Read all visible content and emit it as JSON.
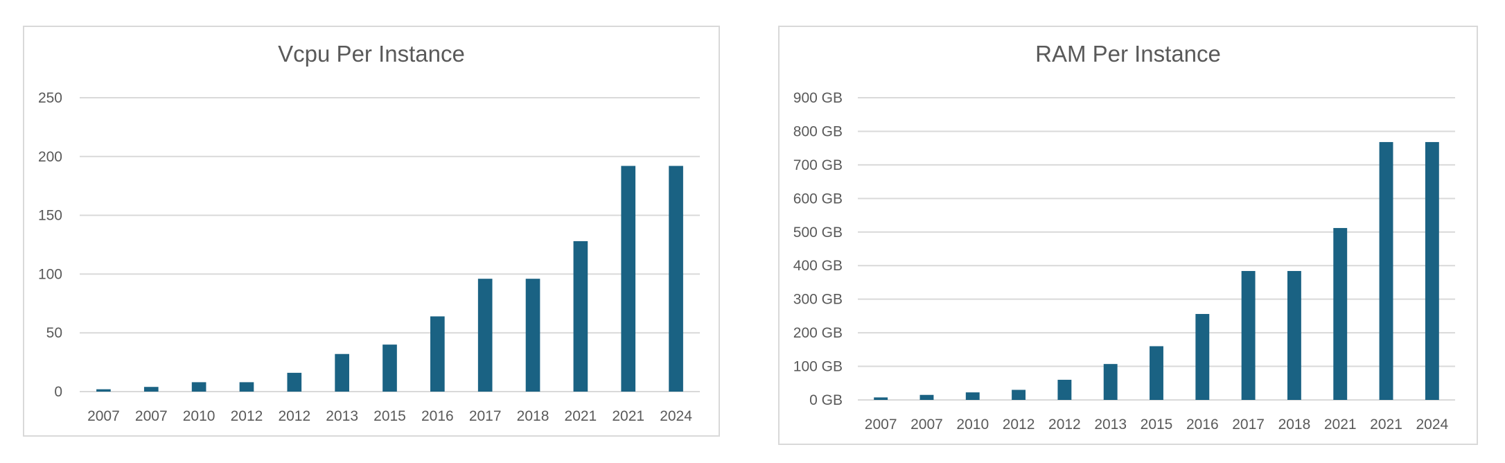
{
  "chart_data": [
    {
      "type": "bar",
      "title": "Vcpu Per Instance",
      "xlabel": "",
      "ylabel": "",
      "categories": [
        "2007",
        "2007",
        "2010",
        "2012",
        "2012",
        "2013",
        "2015",
        "2016",
        "2017",
        "2018",
        "2021",
        "2021",
        "2024"
      ],
      "values": [
        2,
        4,
        8,
        8,
        16,
        32,
        40,
        64,
        96,
        96,
        128,
        192,
        192
      ],
      "ylim": [
        0,
        250
      ],
      "yticks": [
        0,
        50,
        100,
        150,
        200,
        250
      ],
      "ytick_labels": [
        "0",
        "50",
        "100",
        "150",
        "200",
        "250"
      ],
      "bar_color": "#1a6283",
      "grid": true,
      "legend": "none"
    },
    {
      "type": "bar",
      "title": "RAM Per Instance",
      "xlabel": "",
      "ylabel": "",
      "categories": [
        "2007",
        "2007",
        "2010",
        "2012",
        "2012",
        "2013",
        "2015",
        "2016",
        "2017",
        "2018",
        "2021",
        "2021",
        "2024"
      ],
      "values": [
        7.5,
        15,
        22.5,
        30,
        60,
        107,
        160,
        256,
        384,
        384,
        512,
        768,
        768
      ],
      "unit": "GB",
      "ylim": [
        0,
        900
      ],
      "yticks": [
        0,
        100,
        200,
        300,
        400,
        500,
        600,
        700,
        800,
        900
      ],
      "ytick_labels": [
        "0 GB",
        "100 GB",
        "200 GB",
        "300 GB",
        "400 GB",
        "500 GB",
        "600 GB",
        "700 GB",
        "800 GB",
        "900 GB"
      ],
      "bar_color": "#1a6283",
      "grid": true,
      "legend": "none"
    }
  ]
}
